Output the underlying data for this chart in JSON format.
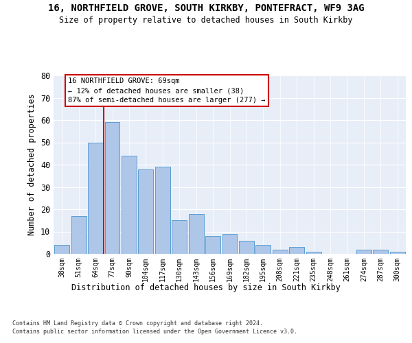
{
  "title": "16, NORTHFIELD GROVE, SOUTH KIRKBY, PONTEFRACT, WF9 3AG",
  "subtitle": "Size of property relative to detached houses in South Kirkby",
  "xlabel": "Distribution of detached houses by size in South Kirkby",
  "ylabel": "Number of detached properties",
  "categories": [
    "38sqm",
    "51sqm",
    "64sqm",
    "77sqm",
    "90sqm",
    "104sqm",
    "117sqm",
    "130sqm",
    "143sqm",
    "156sqm",
    "169sqm",
    "182sqm",
    "195sqm",
    "208sqm",
    "221sqm",
    "235sqm",
    "248sqm",
    "261sqm",
    "274sqm",
    "287sqm",
    "300sqm"
  ],
  "values": [
    4,
    17,
    50,
    59,
    44,
    38,
    39,
    15,
    18,
    8,
    9,
    6,
    4,
    2,
    3,
    1,
    0,
    0,
    2,
    2,
    1
  ],
  "bar_color": "#aec6e8",
  "bar_edge_color": "#5a9fd4",
  "ref_line_color": "#cc0000",
  "annotation_line1": "16 NORTHFIELD GROVE: 69sqm",
  "annotation_line2": "← 12% of detached houses are smaller (38)",
  "annotation_line3": "87% of semi-detached houses are larger (277) →",
  "annotation_box_color": "#ffffff",
  "annotation_box_edge": "#cc0000",
  "ylim": [
    0,
    80
  ],
  "yticks": [
    0,
    10,
    20,
    30,
    40,
    50,
    60,
    70,
    80
  ],
  "bg_color": "#e8eef8",
  "fig_bg_color": "#ffffff",
  "footer_line1": "Contains HM Land Registry data © Crown copyright and database right 2024.",
  "footer_line2": "Contains public sector information licensed under the Open Government Licence v3.0."
}
